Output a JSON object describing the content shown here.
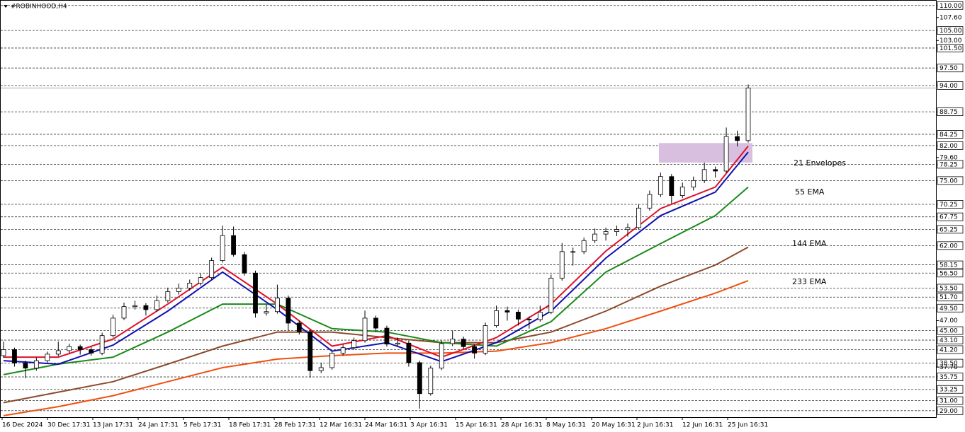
{
  "chart_data": {
    "type": "candlestick",
    "title": "#ROBINHOOD,H4",
    "ylim": [
      27.7,
      111.1
    ],
    "yticks": [
      {
        "value": 110,
        "label": "110.00"
      },
      {
        "value": 105,
        "label": "105.00"
      },
      {
        "value": 101.5,
        "label": "101.50"
      },
      {
        "value": 97.5,
        "label": "97.50"
      },
      {
        "value": 94,
        "label": "94.00"
      },
      {
        "value": 88.75,
        "label": "88.75"
      },
      {
        "value": 84.25,
        "label": "84.25"
      },
      {
        "value": 82,
        "label": "82.00"
      },
      {
        "value": 78.25,
        "label": "78.25"
      },
      {
        "value": 75,
        "label": "75.00"
      },
      {
        "value": 70.25,
        "label": "70.25"
      },
      {
        "value": 67.75,
        "label": "67.75"
      },
      {
        "value": 65.25,
        "label": "65.25"
      },
      {
        "value": 62,
        "label": "62.00"
      },
      {
        "value": 58.15,
        "label": "58.15"
      },
      {
        "value": 56.5,
        "label": "56.50"
      },
      {
        "value": 53.5,
        "label": "53.50"
      },
      {
        "value": 51.7,
        "label": "51.70"
      },
      {
        "value": 49.5,
        "label": "49.50"
      },
      {
        "value": 45,
        "label": "45.00"
      },
      {
        "value": 43.1,
        "label": "43.10"
      },
      {
        "value": 41.2,
        "label": "41.20"
      },
      {
        "value": 38.5,
        "label": "38.50"
      },
      {
        "value": 35.75,
        "label": "35.75"
      },
      {
        "value": 33.25,
        "label": "33.25"
      },
      {
        "value": 31,
        "label": "31.00"
      },
      {
        "value": 29,
        "label": "29.00"
      }
    ],
    "yticks_minor": [
      {
        "value": 107.6,
        "label": "107.60"
      },
      {
        "value": 103,
        "label": "103.00"
      },
      {
        "value": 79.6,
        "label": "79.60"
      },
      {
        "value": 47,
        "label": "47.00"
      },
      {
        "value": 37.7,
        "label": "37.70"
      }
    ],
    "grid": true,
    "xlabels": [
      "16 Dec 2024",
      "30 Dec 17:31",
      "13 Jan 17:31",
      "24 Jan 17:31",
      "5 Feb 17:31",
      "18 Feb 17:31",
      "28 Feb 17:31",
      "12 Mar 16:31",
      "24 Mar 16:31",
      "3 Apr 16:31",
      "15 Apr 16:31",
      "28 Apr 16:31",
      "8 May 16:31",
      "20 May 16:31",
      "2 Jun 16:31",
      "12 Jun 16:31",
      "25 Jun 16:31"
    ],
    "candles": [
      [
        40.0,
        42.8,
        39.6,
        41.2
      ],
      [
        41.2,
        41.6,
        37.8,
        38.5
      ],
      [
        38.5,
        39.0,
        35.5,
        37.5
      ],
      [
        37.5,
        39.6,
        37.0,
        39.0
      ],
      [
        39.0,
        40.8,
        38.6,
        40.3
      ],
      [
        40.3,
        42.8,
        39.9,
        41.0
      ],
      [
        41.0,
        42.4,
        40.5,
        41.8
      ],
      [
        41.8,
        42.2,
        40.2,
        41.2
      ],
      [
        41.2,
        41.8,
        40.0,
        40.5
      ],
      [
        40.5,
        44.6,
        40.1,
        44.0
      ],
      [
        44.0,
        48.2,
        43.6,
        47.5
      ],
      [
        47.5,
        50.6,
        47.1,
        49.8
      ],
      [
        49.8,
        51.0,
        49.2,
        50.0
      ],
      [
        50.0,
        50.5,
        48.0,
        49.2
      ],
      [
        49.2,
        52.0,
        48.8,
        51.0
      ],
      [
        51.0,
        53.6,
        50.6,
        52.8
      ],
      [
        52.8,
        54.4,
        52.2,
        53.5
      ],
      [
        53.5,
        55.2,
        53.0,
        54.5
      ],
      [
        54.5,
        56.4,
        54.0,
        55.6
      ],
      [
        55.6,
        59.6,
        55.2,
        59.0
      ],
      [
        59.0,
        66.0,
        58.6,
        64.0
      ],
      [
        64.0,
        65.8,
        59.8,
        60.2
      ],
      [
        60.2,
        60.7,
        56.0,
        56.5
      ],
      [
        56.5,
        57.0,
        47.6,
        48.5
      ],
      [
        48.5,
        50.2,
        48.0,
        48.8
      ],
      [
        48.8,
        54.2,
        48.4,
        51.5
      ],
      [
        51.5,
        52.0,
        45.0,
        46.5
      ],
      [
        46.5,
        47.0,
        44.2,
        44.8
      ],
      [
        44.8,
        45.3,
        35.6,
        37.0
      ],
      [
        37.0,
        38.6,
        36.5,
        37.6
      ],
      [
        37.6,
        41.0,
        37.2,
        40.5
      ],
      [
        40.5,
        42.2,
        40.0,
        41.6
      ],
      [
        41.6,
        43.6,
        41.2,
        43.0
      ],
      [
        43.0,
        49.0,
        42.6,
        47.5
      ],
      [
        47.5,
        48.0,
        44.8,
        45.5
      ],
      [
        45.5,
        46.0,
        41.8,
        42.3
      ],
      [
        42.3,
        43.6,
        41.8,
        42.5
      ],
      [
        42.5,
        43.0,
        37.8,
        38.6
      ],
      [
        38.6,
        39.0,
        29.4,
        32.4
      ],
      [
        32.4,
        38.0,
        32.0,
        37.5
      ],
      [
        37.5,
        43.0,
        37.1,
        42.4
      ],
      [
        42.4,
        45.0,
        41.9,
        43.3
      ],
      [
        43.3,
        43.8,
        41.3,
        41.8
      ],
      [
        41.8,
        42.3,
        39.4,
        40.5
      ],
      [
        40.5,
        46.6,
        40.1,
        46.0
      ],
      [
        46.0,
        50.0,
        45.6,
        49.0
      ],
      [
        49.0,
        49.8,
        47.0,
        48.7
      ],
      [
        48.7,
        49.2,
        46.0,
        47.3
      ],
      [
        47.3,
        47.8,
        45.4,
        47.2
      ],
      [
        47.2,
        50.0,
        46.8,
        48.7
      ],
      [
        48.7,
        56.2,
        48.3,
        55.5
      ],
      [
        55.5,
        62.5,
        55.0,
        60.8
      ],
      [
        60.8,
        61.6,
        58.0,
        60.8
      ],
      [
        60.8,
        63.6,
        60.3,
        63.0
      ],
      [
        63.0,
        65.4,
        62.5,
        64.3
      ],
      [
        64.3,
        65.6,
        63.0,
        64.8
      ],
      [
        64.8,
        66.0,
        63.9,
        65.2
      ],
      [
        65.2,
        66.4,
        63.8,
        65.6
      ],
      [
        65.6,
        70.2,
        65.2,
        69.5
      ],
      [
        69.5,
        73.0,
        69.0,
        72.2
      ],
      [
        72.2,
        76.6,
        71.7,
        75.8
      ],
      [
        75.8,
        76.3,
        70.4,
        72.0
      ],
      [
        72.0,
        74.6,
        71.5,
        73.7
      ],
      [
        73.7,
        75.8,
        73.0,
        75.0
      ],
      [
        75.0,
        78.6,
        74.5,
        77.2
      ],
      [
        77.2,
        77.8,
        75.6,
        76.9
      ],
      [
        76.9,
        85.6,
        76.5,
        83.8
      ],
      [
        83.8,
        85.0,
        81.8,
        83.0
      ],
      [
        83.0,
        94.2,
        82.6,
        93.5
      ]
    ],
    "line_x": [
      0,
      5,
      10,
      15,
      20,
      25,
      30,
      35,
      40,
      45,
      50,
      55,
      60,
      65,
      68
    ],
    "series": [
      {
        "name": "21 Envelopes",
        "color": "#1010b0",
        "values": [
          39.0,
          38.3,
          42.1,
          48.9,
          56.7,
          49.2,
          40.9,
          42.6,
          38.8,
          42.6,
          48.9,
          59.5,
          68.0,
          72.7,
          80.7
        ],
        "upper": [
          39.7,
          39.7,
          43.3,
          50.3,
          57.7,
          50.3,
          41.9,
          44.0,
          39.7,
          43.6,
          50.3,
          60.9,
          69.4,
          73.7,
          81.9
        ],
        "upper_color": "#e0102a"
      },
      {
        "name": "55 EMA",
        "color": "#1a8a1a",
        "values": [
          36.2,
          38.3,
          39.7,
          44.7,
          50.3,
          50.3,
          45.4,
          44.7,
          42.6,
          41.9,
          46.8,
          56.7,
          62.4,
          68.0,
          73.7
        ]
      },
      {
        "name": "144 EMA",
        "color": "#8b4a2b",
        "values": [
          30.6,
          32.7,
          34.8,
          38.3,
          41.9,
          44.7,
          44.7,
          43.6,
          42.6,
          42.6,
          44.7,
          48.9,
          53.9,
          58.1,
          61.7
        ]
      },
      {
        "name": "233 EMA",
        "color": "#f05010",
        "values": [
          28.0,
          29.8,
          32.0,
          34.8,
          37.6,
          39.3,
          40.0,
          40.5,
          40.5,
          40.9,
          42.6,
          45.4,
          48.9,
          52.5,
          55.0
        ]
      }
    ],
    "zone": {
      "top": 82.5,
      "bottom": 78.6,
      "color": "#d8bfe0"
    }
  }
}
